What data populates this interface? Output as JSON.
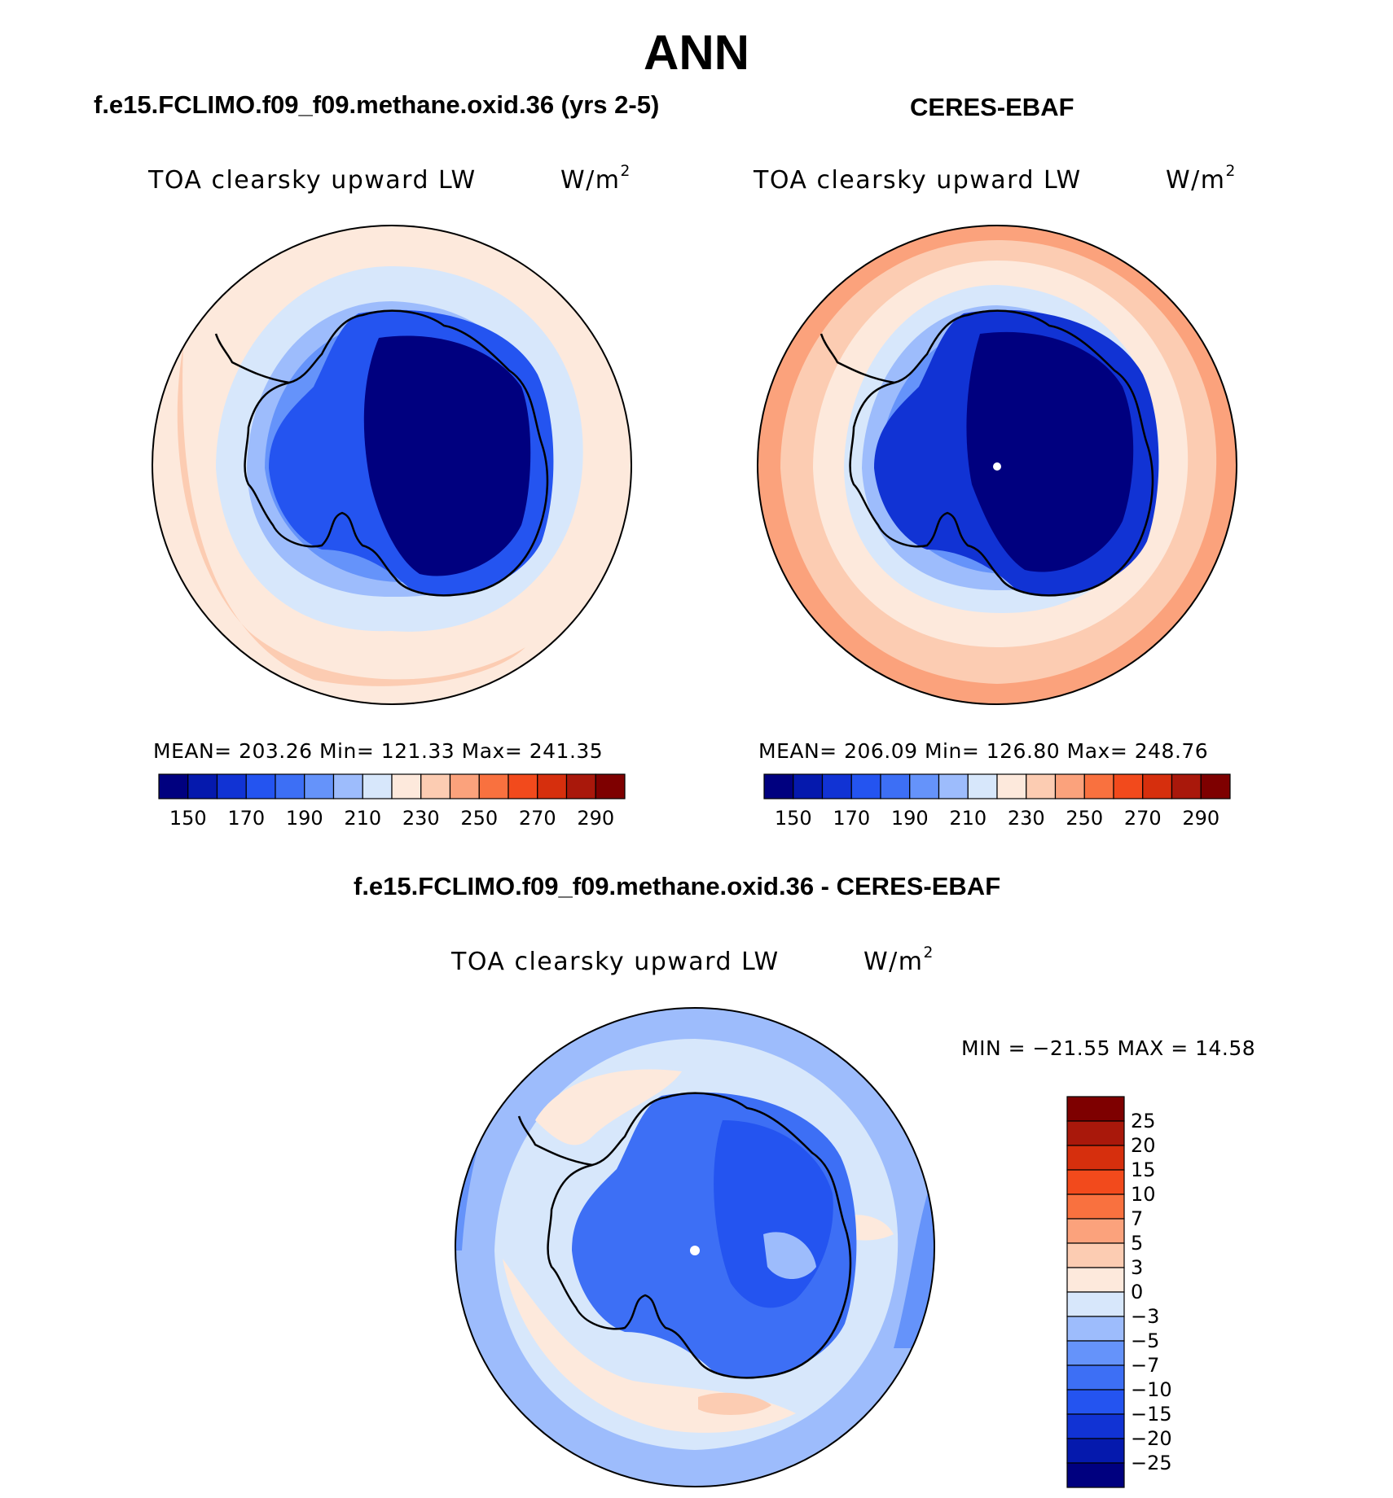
{
  "title": "ANN",
  "panels": [
    {
      "case_title": "f.e15.FCLIMO.f09_f09.methane.oxid.36 (yrs 2-5)",
      "plot_title": "TOA clearsky upward LW",
      "units_base": "W/m",
      "units_exp": "2",
      "stats": "MEAN= 203.26   Min= 121.33   Max= 241.35",
      "colorbar": {
        "colors": [
          "#00007f",
          "#0519ad",
          "#1133d4",
          "#2454f0",
          "#3d6ff5",
          "#6593fa",
          "#9dbcfc",
          "#d7e7fb",
          "#fde9dc",
          "#fcccb2",
          "#fba27c",
          "#f9713f",
          "#f24a1c",
          "#d62f0d",
          "#a9180b",
          "#7e0000"
        ],
        "labels": [
          "150",
          "170",
          "190",
          "210",
          "230",
          "250",
          "270",
          "290"
        ]
      }
    },
    {
      "case_title": "CERES-EBAF",
      "plot_title": "TOA clearsky upward LW",
      "units_base": "W/m",
      "units_exp": "2",
      "stats": "MEAN= 206.09   Min= 126.80   Max= 248.76",
      "colorbar": {
        "colors": [
          "#00007f",
          "#0519ad",
          "#1133d4",
          "#2454f0",
          "#3d6ff5",
          "#6593fa",
          "#9dbcfc",
          "#d7e7fb",
          "#fde9dc",
          "#fcccb2",
          "#fba27c",
          "#f9713f",
          "#f24a1c",
          "#d62f0d",
          "#a9180b",
          "#7e0000"
        ],
        "labels": [
          "150",
          "170",
          "190",
          "210",
          "230",
          "250",
          "270",
          "290"
        ]
      }
    },
    {
      "case_title": "f.e15.FCLIMO.f09_f09.methane.oxid.36 - CERES-EBAF",
      "plot_title": "TOA clearsky upward LW",
      "units_base": "W/m",
      "units_exp": "2",
      "stats": "MIN = −21.55 MAX =   14.58",
      "colorbar": {
        "colors": [
          "#7e0000",
          "#a9180b",
          "#d62f0d",
          "#f24a1c",
          "#f9713f",
          "#fba27c",
          "#fcccb2",
          "#fde9dc",
          "#d7e7fb",
          "#9dbcfc",
          "#6593fa",
          "#3d6ff5",
          "#2454f0",
          "#1133d4",
          "#0519ad",
          "#00007f"
        ],
        "labels": [
          "25",
          "20",
          "15",
          "10",
          "7",
          "5",
          "3",
          "0",
          "−3",
          "−5",
          "−7",
          "−10",
          "−15",
          "−20",
          "−25"
        ]
      }
    }
  ],
  "map_colors": {
    "outline": "#000000",
    "deep_blue": "#00007f",
    "mid_blue": "#1133d4",
    "light_blue": "#d7e7fb",
    "peach": "#fde9dc",
    "salmon": "#fcccb2",
    "orange": "#fba27c"
  }
}
